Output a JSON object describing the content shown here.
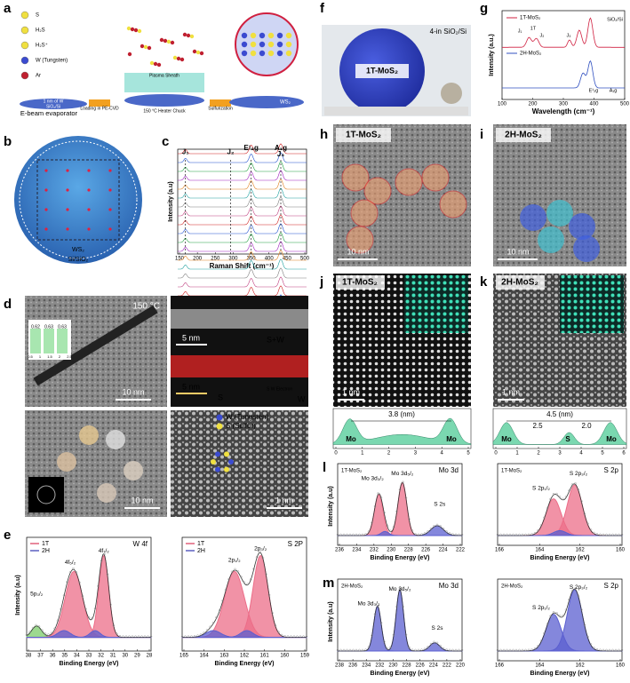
{
  "panels": {
    "a": {
      "label": "a",
      "legend": [
        "S",
        "H₂S",
        "H₂S⁺",
        "W (Tungsten)",
        "Ar"
      ],
      "film": "1 nm of W",
      "substrate": "SiO₂/Si",
      "step1": "E-beam evaporator",
      "arrow1": "Loading in PE-CVD",
      "sheath": "Plasma Sheath",
      "heater": "150 °C Heater Chuck",
      "arrow2": "Sulfurization",
      "product": "WS₂"
    },
    "b": {
      "label": "b",
      "film": "WS₂",
      "substrate": "Si/SiO₂"
    },
    "c": {
      "label": "c",
      "ylabel": "Intensity (a.u)",
      "xlabel": "Raman Shift (cm⁻¹)",
      "xticks": [
        150,
        200,
        250,
        300,
        350,
        400,
        450,
        500
      ],
      "peaks": [
        "J₁",
        "J₂",
        "E¹₂g",
        "A₁g",
        "J₃"
      ]
    },
    "d": {
      "label": "d",
      "temp": "150 °C",
      "inset_values": [
        0.62,
        0.63,
        0.63
      ],
      "inset_ticks": [
        0.5,
        1.0,
        1.5,
        2.0,
        2.5
      ],
      "scale1": "10 nm",
      "scale2": "5 nm",
      "scale3": "5 nm",
      "map1": "S+W",
      "map2": "S",
      "map3": "W",
      "map_legend": "S W Electron",
      "scale4": "10 nm",
      "scale5": "1 nm",
      "legend": [
        "W (Tungsten)",
        "S (Sulfur)"
      ]
    },
    "e": {
      "label": "e",
      "ylabel": "Intensity (a.u)",
      "plots": [
        {
          "title": "W 4f",
          "legend": [
            "1T",
            "2H"
          ],
          "peaks": [
            "5p₃/₂",
            "4f₅/₂",
            "4f₇/₂"
          ],
          "xlabel": "Binding Energy (eV)",
          "xticks": [
            38,
            37,
            36,
            35,
            34,
            33,
            32,
            31,
            30,
            29,
            28
          ]
        },
        {
          "title": "S 2P",
          "legend": [
            "1T",
            "2H"
          ],
          "peaks": [
            "2p₁/₂",
            "2p₃/₂"
          ],
          "xlabel": "Binding Energy (eV)",
          "xticks": [
            165,
            164,
            163,
            162,
            161,
            160,
            159
          ]
        }
      ]
    },
    "f": {
      "label": "f",
      "substrate": "4-in SiO₂/Si",
      "film": "1T-MoS₂"
    },
    "g": {
      "label": "g",
      "legend": [
        "1T-MoS₂",
        "2H-MoS₂"
      ],
      "peak_labels": [
        "J₁",
        "1T",
        "J₂",
        "J₃",
        "E¹₂g",
        "A₁g",
        "SiO₂/Si"
      ],
      "ylabel": "Intensity (a.u.)",
      "xlabel": "Wavelength (cm⁻¹)",
      "xticks": [
        100,
        200,
        300,
        400,
        500
      ]
    },
    "h": {
      "label": "h",
      "film": "1T-MoS₂",
      "scale": "10 nm"
    },
    "i": {
      "label": "i",
      "film": "2H-MoS₂",
      "scale": "10 nm"
    },
    "j": {
      "label": "j",
      "film": "1T-MoS₂",
      "scale": "1 nm",
      "distance": "3.8 (nm)",
      "atoms": [
        "Mo",
        "Mo"
      ],
      "xticks": [
        0,
        1,
        2,
        3,
        4,
        5
      ]
    },
    "k": {
      "label": "k",
      "film": "2H-MoS₂",
      "scale": "1 nm",
      "distance": "4.5 (nm)",
      "sub": [
        "2.5",
        "2.0"
      ],
      "atoms": [
        "Mo",
        "S",
        "Mo"
      ],
      "xticks": [
        0,
        1,
        2,
        3,
        4,
        5,
        6
      ]
    },
    "l": {
      "label": "l",
      "ylabel": "Intensity (a.u)",
      "plots": [
        {
          "sample": "1T-MoS₂",
          "title": "Mo 3d",
          "peaks": [
            "Mo 3d₃/₂",
            "Mo 3d₅/₂",
            "S 2s"
          ],
          "xlabel": "Binding Energy (eV)",
          "xticks": [
            236,
            234,
            232,
            230,
            228,
            226,
            224,
            222
          ]
        },
        {
          "sample": "1T-MoS₂",
          "title": "S 2p",
          "peaks": [
            "S 2p₁/₂",
            "S 2p₃/₂"
          ],
          "xlabel": "Binding Energy (eV)",
          "xticks": [
            166,
            164,
            162,
            160
          ]
        }
      ]
    },
    "m": {
      "label": "m",
      "ylabel": "Intensity (a.u)",
      "plots": [
        {
          "sample": "2H-MoS₂",
          "title": "Mo 3d",
          "peaks": [
            "Mo 3d₃/₂",
            "Mo 3d₅/₂",
            "S 2s"
          ],
          "xlabel": "Binding Energy (eV)",
          "xticks": [
            238,
            236,
            234,
            232,
            230,
            228,
            226,
            224,
            222,
            220
          ]
        },
        {
          "sample": "2H-MoS₂",
          "title": "S 2p",
          "peaks": [
            "S 2p₁/₂",
            "S 2p₃/₂"
          ],
          "xlabel": "Binding Energy (eV)",
          "xticks": [
            166,
            164,
            162,
            160
          ]
        }
      ]
    }
  }
}
